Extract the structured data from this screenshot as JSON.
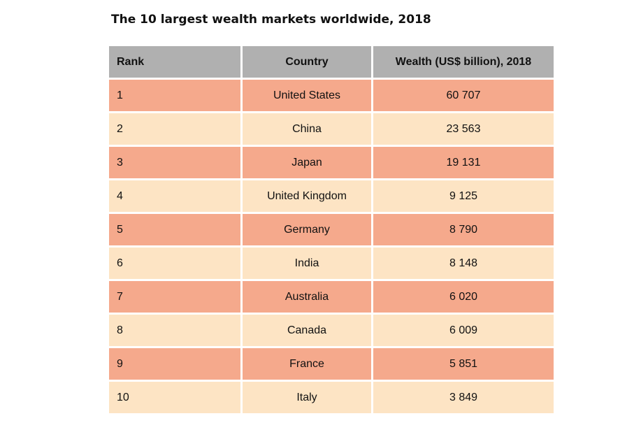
{
  "chart_data": {
    "type": "table",
    "title": "The 10 largest wealth markets worldwide, 2018",
    "columns": [
      "Rank",
      "Country",
      "Wealth (US$ billion), 2018"
    ],
    "rows": [
      {
        "rank": "1",
        "country": "United States",
        "wealth": "60 707"
      },
      {
        "rank": "2",
        "country": "China",
        "wealth": "23 563"
      },
      {
        "rank": "3",
        "country": "Japan",
        "wealth": "19 131"
      },
      {
        "rank": "4",
        "country": "United Kingdom",
        "wealth": "9 125"
      },
      {
        "rank": "5",
        "country": "Germany",
        "wealth": "8 790"
      },
      {
        "rank": "6",
        "country": "India",
        "wealth": "8 148"
      },
      {
        "rank": "7",
        "country": "Australia",
        "wealth": "6 020"
      },
      {
        "rank": "8",
        "country": "Canada",
        "wealth": "6 009"
      },
      {
        "rank": "9",
        "country": "France",
        "wealth": "5 851"
      },
      {
        "rank": "10",
        "country": "Italy",
        "wealth": "3 849"
      }
    ],
    "colors": {
      "header": "#b0b0b0",
      "row_odd": "#f5a98c",
      "row_even": "#fde4c4"
    }
  }
}
